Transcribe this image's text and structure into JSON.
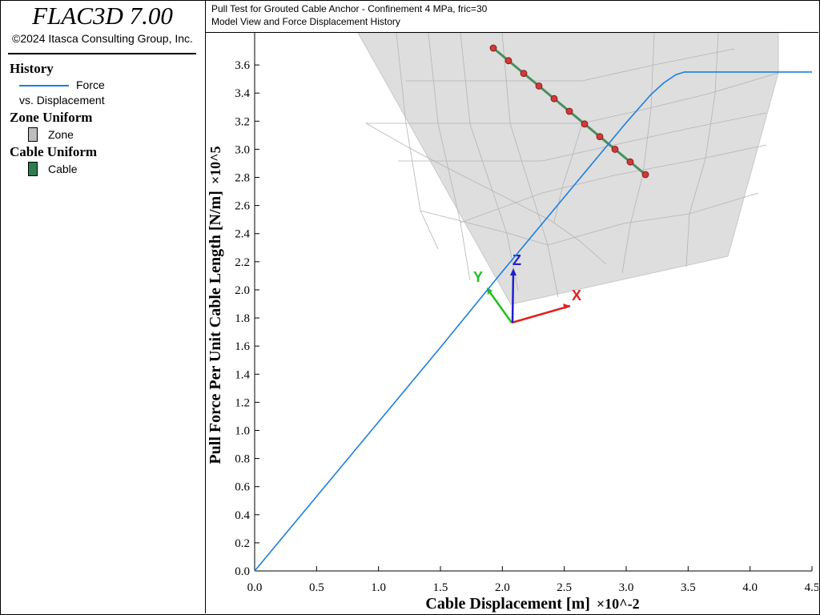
{
  "app": {
    "title": "FLAC3D 7.00",
    "copyright": "©2024 Itasca Consulting Group, Inc."
  },
  "header": {
    "line1": "Pull Test for Grouted Cable Anchor - Confinement 4 MPa, fric=30",
    "line2": "Model View and Force Displacement History"
  },
  "legend": {
    "history": {
      "heading": "History",
      "series_label_1": "Force",
      "series_label_2": "vs. Displacement",
      "color": "#1a7fe0"
    },
    "zone": {
      "heading": "Zone Uniform",
      "label": "Zone",
      "color": "#bdbdbd"
    },
    "cable": {
      "heading": "Cable Uniform",
      "label": "Cable",
      "color": "#2e7d4f"
    }
  },
  "axes_triad": {
    "x_label": "X",
    "y_label": "Y",
    "z_label": "Z",
    "x_color": "#e02020",
    "y_color": "#20c020",
    "z_color": "#2020d0"
  },
  "chart_data": {
    "type": "line",
    "xlabel": "Cable Displacement [m]",
    "xlabel_suffix": "×10^-2",
    "ylabel": "Pull Force Per Unit Cable Length [N/m]",
    "ylabel_suffix": "×10^5",
    "xlim": [
      0,
      4.5
    ],
    "ylim": [
      0,
      3.8
    ],
    "xticks": [
      "0.0",
      "0.5",
      "1.0",
      "1.5",
      "2.0",
      "2.5",
      "3.0",
      "3.5",
      "4.0",
      "4.5"
    ],
    "yticks": [
      "0.0",
      "0.2",
      "0.4",
      "0.6",
      "0.8",
      "1.0",
      "1.2",
      "1.4",
      "1.6",
      "1.8",
      "2.0",
      "2.2",
      "2.4",
      "2.6",
      "2.8",
      "3.0",
      "3.2",
      "3.4",
      "3.6"
    ],
    "series": [
      {
        "color": "#1a7fe0",
        "x": [
          0.0,
          0.5,
          1.0,
          1.5,
          2.0,
          2.5,
          3.0,
          3.2,
          3.3,
          3.4,
          3.47,
          3.6,
          4.0,
          4.5
        ],
        "y": [
          0.0,
          0.53,
          1.06,
          1.59,
          2.13,
          2.66,
          3.19,
          3.39,
          3.47,
          3.53,
          3.55,
          3.55,
          3.55,
          3.55
        ]
      }
    ],
    "grid": false
  }
}
